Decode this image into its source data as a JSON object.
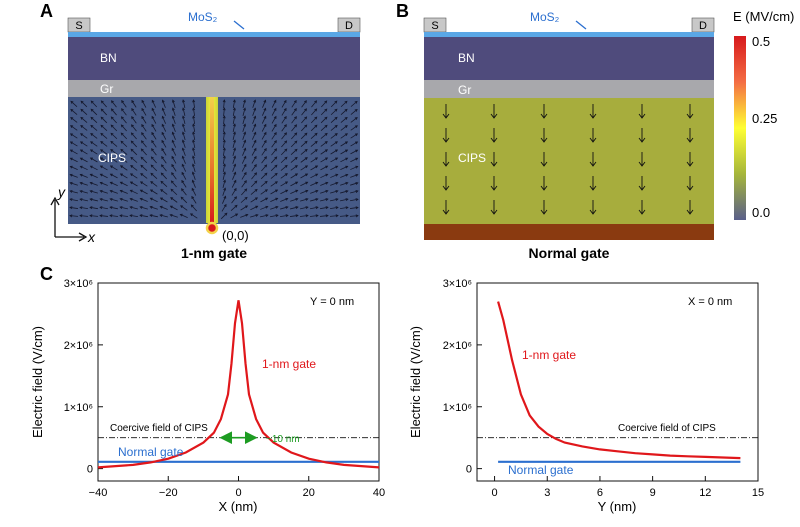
{
  "panel_a": {
    "letter": "A",
    "source_label": "S",
    "drain_label": "D",
    "mos2_label": "MoS₂",
    "layers": [
      "BN",
      "Gr",
      "CIPS"
    ],
    "origin_label": "(0,0)",
    "y_axis_label": "y",
    "x_axis_label": "x",
    "caption": "1-nm gate"
  },
  "panel_b": {
    "letter": "B",
    "source_label": "S",
    "drain_label": "D",
    "mos2_label": "MoS₂",
    "layers": [
      "BN",
      "Gr",
      "CIPS"
    ],
    "caption": "Normal gate"
  },
  "colorbar": {
    "title": "E (MV/cm)",
    "ticks": [
      "0.5",
      "0.25",
      "0.0"
    ],
    "colors": [
      "#d7191c",
      "#fdae61",
      "#ffff33",
      "#a6b63a",
      "#5a5f8a"
    ]
  },
  "colors": {
    "mos2": "#5aa7e6",
    "bn": "#4f4b7c",
    "gr": "#a8a8ac",
    "cips_field": "#465a86",
    "cips_normal": "#a7ad3d",
    "gate_normal": "#8a3a10",
    "red": "#e0171b",
    "blue": "#2b6fcf",
    "green": "#1d9c22"
  },
  "panel_c": {
    "letter": "C",
    "charts": [
      {
        "type": "line",
        "xlabel": "X (nm)",
        "ylabel": "Electric field (V/cm)",
        "xlim": [
          -40,
          40
        ],
        "ylim": [
          -200000,
          3000000
        ],
        "x_ticks": [
          "−40",
          "−20",
          "0",
          "20",
          "40"
        ],
        "y_ticks": [
          "0",
          "1×10⁶",
          "2×10⁶",
          "3×10⁶"
        ],
        "condition_label": "Y = 0 nm",
        "coercive_label": "Coercive field of CIPS",
        "coercive_value": 500000,
        "width_annotation": "~10 nm",
        "series": [
          {
            "name": "1-nm gate",
            "x": [
              -40,
              -30,
              -25,
              -20,
              -15,
              -10,
              -7,
              -5,
              -3,
              -2,
              -1,
              0,
              1,
              2,
              3,
              5,
              7,
              10,
              15,
              20,
              25,
              30,
              40
            ],
            "y": [
              20000,
              60000,
              100000,
              160000,
              260000,
              420000,
              580000,
              800000,
              1200000,
              1700000,
              2350000,
              2720000,
              2350000,
              1700000,
              1200000,
              800000,
              580000,
              420000,
              260000,
              160000,
              100000,
              60000,
              20000
            ]
          },
          {
            "name": "Normal gate",
            "x": [
              -40,
              40
            ],
            "y": [
              110000,
              110000
            ]
          }
        ]
      },
      {
        "type": "line",
        "xlabel": "Y (nm)",
        "ylabel": "Electric field (V/cm)",
        "xlim": [
          -1,
          15
        ],
        "ylim": [
          -200000,
          3000000
        ],
        "x_ticks": [
          "0",
          "3",
          "6",
          "9",
          "12",
          "15"
        ],
        "y_ticks": [
          "0",
          "1×10⁶",
          "2×10⁶",
          "3×10⁶"
        ],
        "condition_label": "X = 0 nm",
        "coercive_label": "Coercive field of CIPS",
        "coercive_value": 500000,
        "series": [
          {
            "name": "1-nm gate",
            "x": [
              0.2,
              0.5,
              1,
              1.5,
              2,
              2.5,
              3,
              3.5,
              4,
              5,
              6,
              7,
              8,
              9,
              10,
              11,
              12,
              13,
              14
            ],
            "y": [
              2700000,
              2400000,
              1750000,
              1200000,
              860000,
              680000,
              560000,
              480000,
              420000,
              360000,
              310000,
              280000,
              250000,
              230000,
              210000,
              200000,
              190000,
              180000,
              170000
            ]
          },
          {
            "name": "Normal gate",
            "x": [
              0.2,
              14
            ],
            "y": [
              110000,
              110000
            ]
          }
        ]
      }
    ]
  }
}
